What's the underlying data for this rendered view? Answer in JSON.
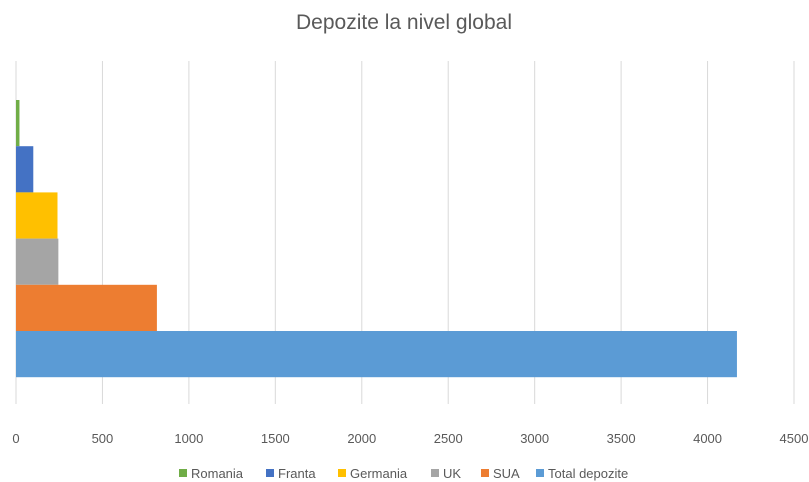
{
  "chart_data": {
    "type": "bar",
    "orientation": "horizontal",
    "title": "Depozite la nivel global",
    "xlabel": "",
    "ylabel": "",
    "xlim": [
      0,
      4500
    ],
    "x_ticks": [
      "0",
      "500",
      "1000",
      "1500",
      "2000",
      "2500",
      "3000",
      "3500",
      "4000",
      "4500"
    ],
    "grid": true,
    "legend_position": "bottom",
    "series": [
      {
        "name": "Romania",
        "value": 20,
        "color": "#70AD47"
      },
      {
        "name": "Franta",
        "value": 100,
        "color": "#4472C4"
      },
      {
        "name": "Germania",
        "value": 240,
        "color": "#FFC000"
      },
      {
        "name": "UK",
        "value": 245,
        "color": "#A5A5A5"
      },
      {
        "name": "SUA",
        "value": 815,
        "color": "#ED7D31"
      },
      {
        "name": "Total depozite",
        "value": 4170,
        "color": "#5B9BD5"
      }
    ]
  }
}
